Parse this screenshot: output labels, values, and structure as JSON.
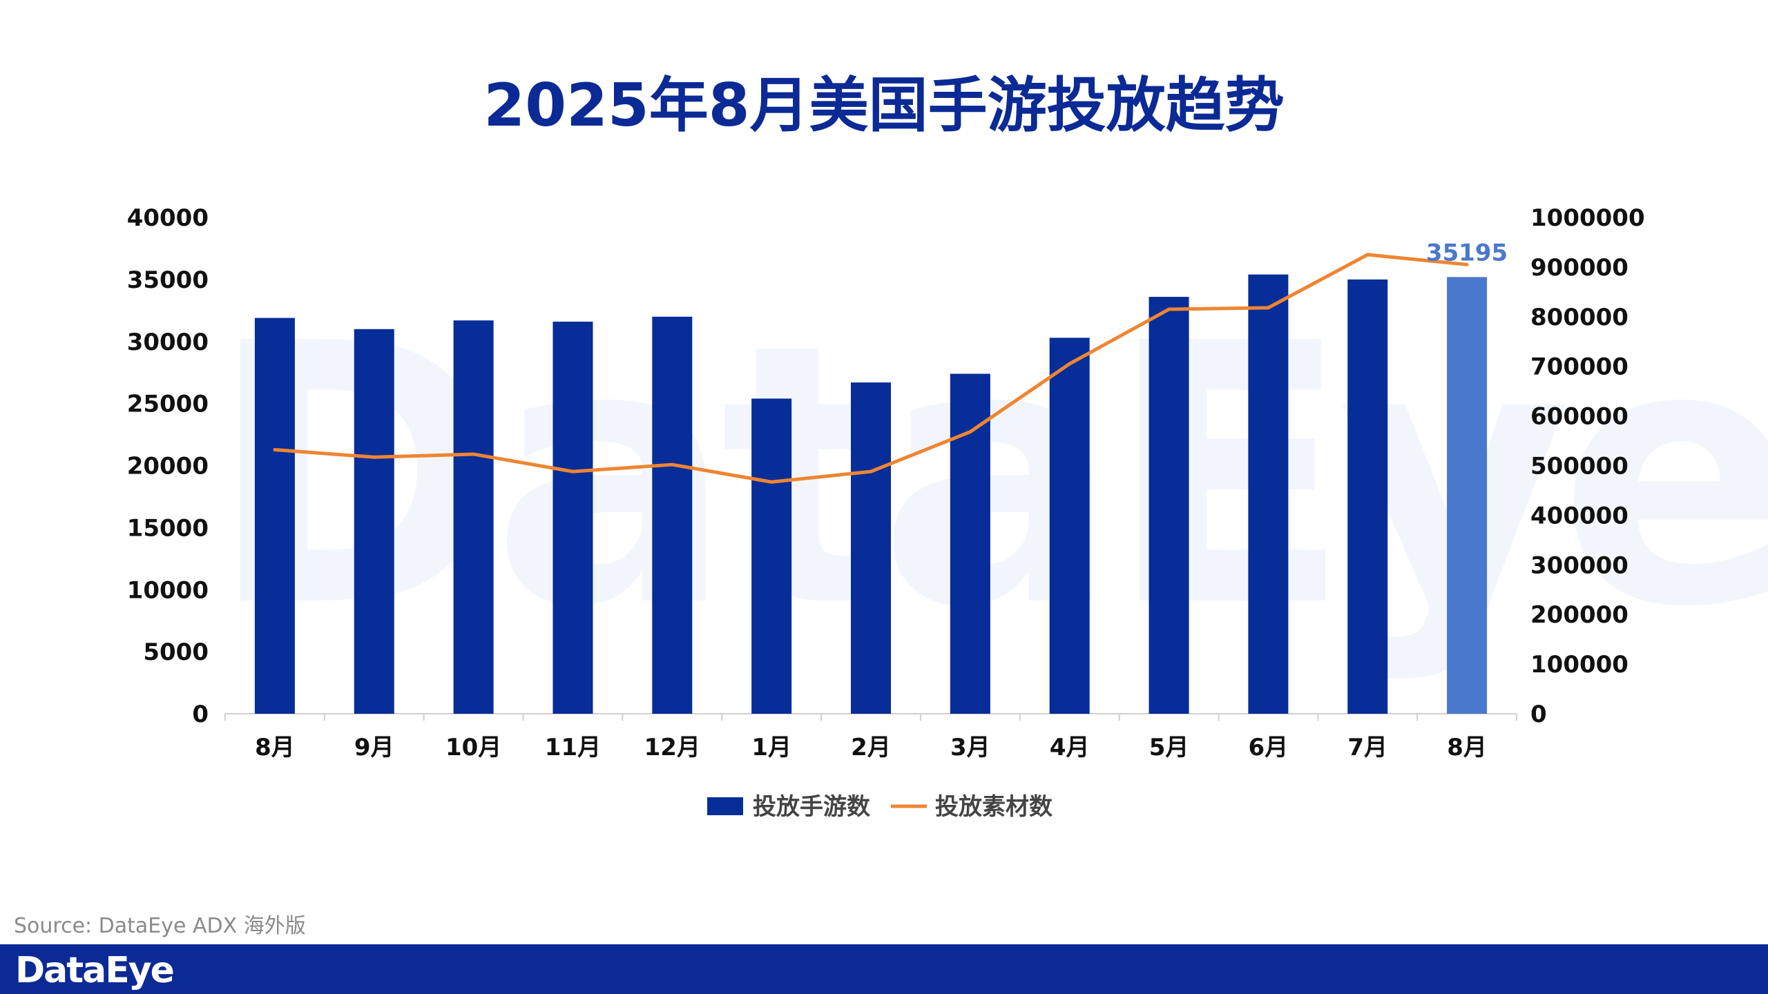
{
  "chart_data": {
    "type": "bar",
    "title": "2025年8月美国手游投放趋势",
    "categories": [
      "8月",
      "9月",
      "10月",
      "11月",
      "12月",
      "1月",
      "2月",
      "3月",
      "4月",
      "5月",
      "6月",
      "7月",
      "8月"
    ],
    "series": [
      {
        "name": "投放手游数",
        "type": "bar",
        "axis": "left",
        "color": "#062d98",
        "highlight_color": "#4a78cc",
        "values": [
          31900,
          31000,
          31700,
          31600,
          32000,
          25400,
          26700,
          27400,
          30300,
          33600,
          35400,
          35000,
          35195
        ]
      },
      {
        "name": "投放素材数",
        "type": "line",
        "axis": "right",
        "color": "#ee8533",
        "values": [
          532000,
          517000,
          523000,
          488000,
          502000,
          467000,
          488000,
          568000,
          705000,
          815000,
          818000,
          925000,
          905000
        ]
      }
    ],
    "y_left": {
      "min": 0,
      "max": 40000,
      "ticks": [
        "0",
        "5000",
        "10000",
        "15000",
        "20000",
        "25000",
        "30000",
        "35000",
        "40000"
      ]
    },
    "y_right": {
      "min": 0,
      "max": 1000000,
      "ticks": [
        "0",
        "100000",
        "200000",
        "300000",
        "400000",
        "500000",
        "600000",
        "700000",
        "800000",
        "900000",
        "1000000"
      ]
    },
    "data_labels": [
      {
        "series": 0,
        "index": 12,
        "text": "35195"
      }
    ],
    "legend": {
      "position": "bottom",
      "items": [
        "投放手游数",
        "投放素材数"
      ]
    },
    "grid": false
  },
  "watermark": "DataEye",
  "source": "Source: DataEye ADX 海外版",
  "footer": {
    "logo": "DataEye"
  }
}
